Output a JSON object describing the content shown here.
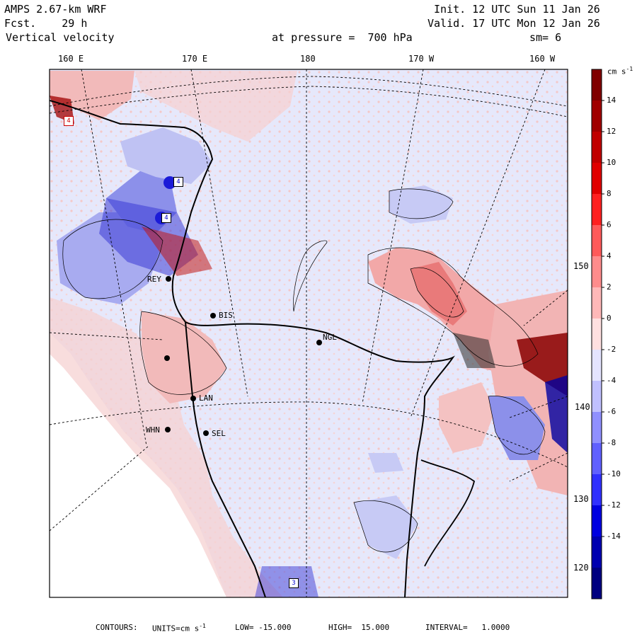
{
  "header": {
    "model": "AMPS 2.67-km WRF",
    "forecast": "Fcst.    29 h",
    "field": "Vertical velocity",
    "init": "Init. 12 UTC Sun 11 Jan 26",
    "valid": "Valid. 17 UTC Mon 12 Jan 26",
    "pressure": "at pressure =  700 hPa",
    "smoothing": "sm= 6"
  },
  "top_ticks": [
    "160 E",
    "170 E",
    "180",
    "170 W",
    "160 W"
  ],
  "right_ticks": [
    "150 W",
    "140 W",
    "130 W",
    "120 W"
  ],
  "colorbar": {
    "unit": "cm s",
    "unit_exp": "-1",
    "labels": [
      "14",
      "12",
      "10",
      "8",
      "6",
      "4",
      "2",
      "0",
      "-2",
      "-4",
      "-6",
      "-8",
      "-10",
      "-12",
      "-14"
    ],
    "colors": [
      "#800000",
      "#a00000",
      "#c00000",
      "#e00000",
      "#ff2020",
      "#ff5a5a",
      "#ff8c8c",
      "#ffb8b8",
      "#ffe0e0",
      "#e4e4ff",
      "#c0c0ff",
      "#9090ff",
      "#6060ff",
      "#3030ff",
      "#0000e0",
      "#0000b0",
      "#000080"
    ]
  },
  "stations": [
    {
      "id": "REY",
      "label": "REY"
    },
    {
      "id": "BIS",
      "label": "BIS"
    },
    {
      "id": "NGL",
      "label": "NGL"
    },
    {
      "id": "LAN",
      "label": "LAN"
    },
    {
      "id": "WHN",
      "label": "WHN"
    },
    {
      "id": "SEL",
      "label": "SEL"
    }
  ],
  "markers": [
    "4",
    "4",
    "4",
    "3"
  ],
  "footer": {
    "label": "CONTOURS:",
    "units": "UNITS=cm s",
    "units_exp": "-1",
    "low": "LOW= -15.000",
    "high": "HIGH=  15.000",
    "interval": "INTERVAL=   1.0000"
  },
  "colors": {
    "land": "#ffffff",
    "ascent": "#f4c8c8",
    "descent": "#e6e8fb"
  }
}
